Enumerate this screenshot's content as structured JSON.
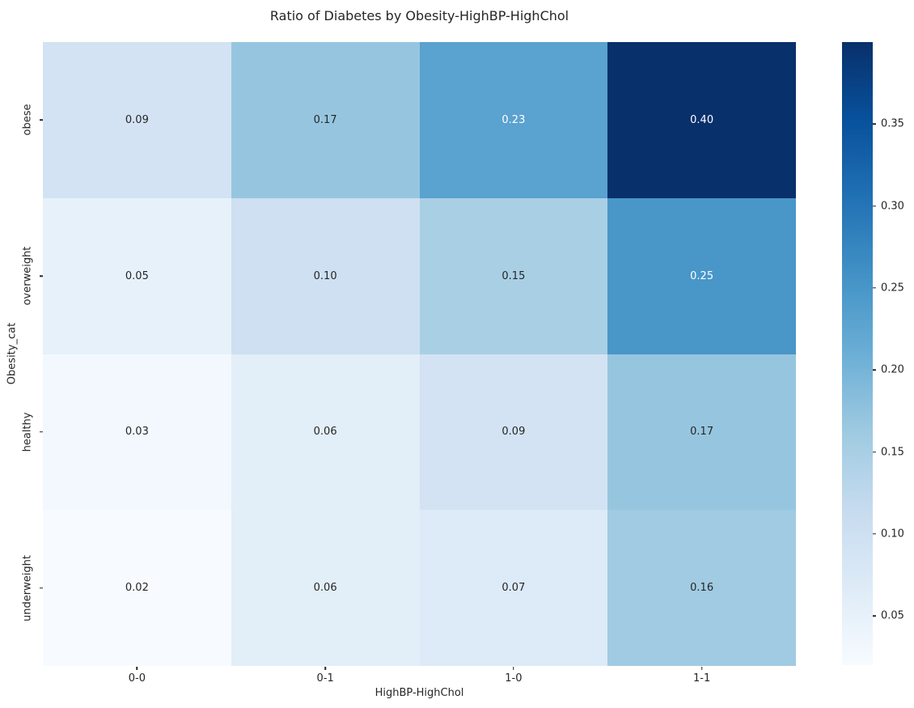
{
  "figure": {
    "background": "#ffffff",
    "text_color": "#262626"
  },
  "chart_data": {
    "type": "heatmap",
    "title": "Ratio of Diabetes by Obesity-HighBP-HighChol",
    "xlabel": "HighBP-HighChol",
    "ylabel": "Obesity_cat",
    "x_categories": [
      "0-0",
      "0-1",
      "1-0",
      "1-1"
    ],
    "y_categories": [
      "obese",
      "overweight",
      "healthy",
      "underweight"
    ],
    "values": [
      [
        0.09,
        0.17,
        0.23,
        0.4
      ],
      [
        0.05,
        0.1,
        0.15,
        0.25
      ],
      [
        0.03,
        0.06,
        0.09,
        0.17
      ],
      [
        0.02,
        0.06,
        0.07,
        0.16
      ]
    ],
    "vmin": 0.02,
    "vmax": 0.4,
    "grid": false,
    "legend_position": "right",
    "colormap": {
      "name": "Blues",
      "stops": [
        "#f7fbff",
        "#deebf7",
        "#c6dbef",
        "#9ecae1",
        "#6baed6",
        "#4292c6",
        "#2171b5",
        "#08519c",
        "#08306b"
      ]
    },
    "cell_colors": [
      [
        "#d3e3f3",
        "#96c6df",
        "#5aa2cf",
        "#08306b"
      ],
      [
        "#e7f1fa",
        "#cee0f1",
        "#a9cfe5",
        "#4996c9"
      ],
      [
        "#f2f8fd",
        "#e2eef8",
        "#d3e3f3",
        "#96c6df"
      ],
      [
        "#f7fbff",
        "#e2eef8",
        "#ddeaf7",
        "#a0cbe2"
      ]
    ],
    "cell_text_colors": [
      [
        "#262626",
        "#262626",
        "#ffffff",
        "#ffffff"
      ],
      [
        "#262626",
        "#262626",
        "#262626",
        "#ffffff"
      ],
      [
        "#262626",
        "#262626",
        "#262626",
        "#262626"
      ],
      [
        "#262626",
        "#262626",
        "#262626",
        "#262626"
      ]
    ],
    "colorbar": {
      "tick_labels": [
        "0.05",
        "0.10",
        "0.15",
        "0.20",
        "0.25",
        "0.30",
        "0.35"
      ],
      "tick_values": [
        0.05,
        0.1,
        0.15,
        0.2,
        0.25,
        0.3,
        0.35
      ]
    }
  }
}
